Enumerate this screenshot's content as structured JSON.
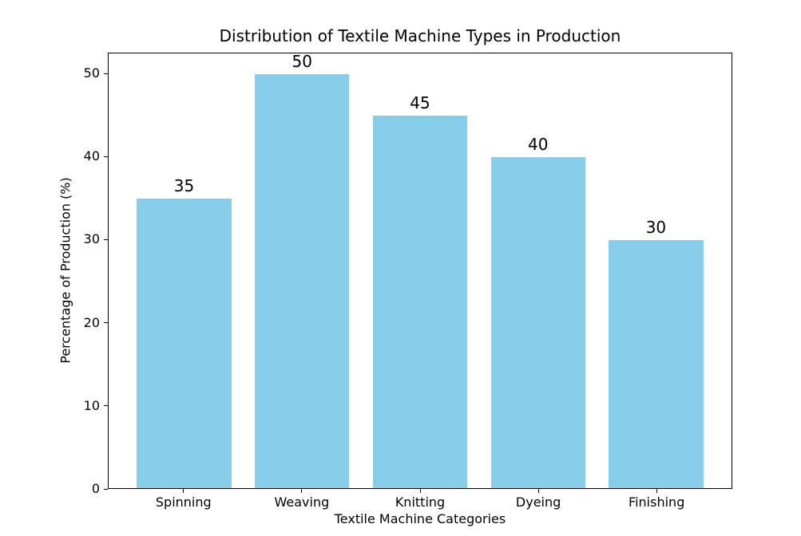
{
  "chart_data": {
    "type": "bar",
    "title": "Distribution of Textile Machine Types in Production",
    "xlabel": "Textile Machine Categories",
    "ylabel": "Percentage of Production (%)",
    "categories": [
      "Spinning",
      "Weaving",
      "Knitting",
      "Dyeing",
      "Finishing"
    ],
    "values": [
      35,
      50,
      45,
      40,
      30
    ],
    "bar_value_labels": [
      "35",
      "50",
      "45",
      "40",
      "30"
    ],
    "bar_color": "#87CEEB",
    "bar_width": 0.8,
    "xlim": [
      -0.64,
      4.64
    ],
    "ylim": [
      0,
      52.5
    ],
    "yticks": [
      0,
      10,
      20,
      30,
      40,
      50
    ],
    "grid": false,
    "legend": null
  }
}
